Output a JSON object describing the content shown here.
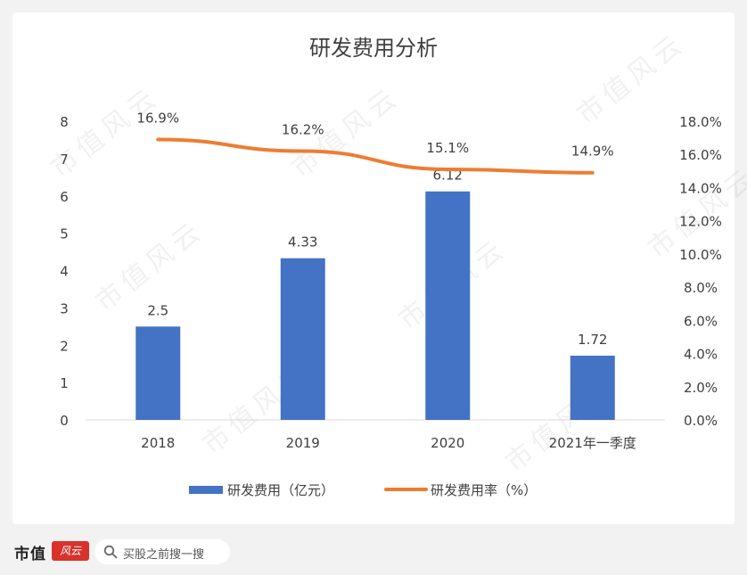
{
  "chart_data": {
    "type": "bar",
    "title": "研发费用分析",
    "categories": [
      "2018",
      "2019",
      "2020",
      "2021年一季度"
    ],
    "series": [
      {
        "name": "研发费用（亿元）",
        "type": "bar",
        "axis": "left",
        "color": "#4472c4",
        "values": [
          2.5,
          4.33,
          6.12,
          1.72
        ],
        "labels": [
          "2.5",
          "4.33",
          "6.12",
          "1.72"
        ]
      },
      {
        "name": "研发费用率（%）",
        "type": "line",
        "axis": "right",
        "color": "#ed7d31",
        "values": [
          16.9,
          16.2,
          15.1,
          14.9
        ],
        "labels": [
          "16.9%",
          "16.2%",
          "15.1%",
          "14.9%"
        ]
      }
    ],
    "y_left": {
      "ylim": [
        0,
        8
      ],
      "ticks": [
        "0",
        "1",
        "2",
        "3",
        "4",
        "5",
        "6",
        "7",
        "8"
      ]
    },
    "y_right": {
      "ylim": [
        0,
        18
      ],
      "ticks": [
        "0.0%",
        "2.0%",
        "4.0%",
        "6.0%",
        "8.0%",
        "10.0%",
        "12.0%",
        "14.0%",
        "16.0%",
        "18.0%"
      ]
    },
    "grid": false,
    "legend_position": "bottom"
  },
  "footer": {
    "brand": "市值",
    "brand_badge": "风云",
    "search_placeholder": "买股之前搜一搜"
  },
  "watermark": "市值风云"
}
